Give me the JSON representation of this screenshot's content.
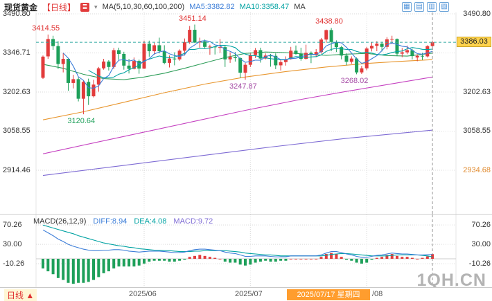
{
  "header": {
    "title": "现货黄金",
    "period": "【日线】",
    "chart_type_glyph": "≣",
    "chevron": "▾",
    "ma_params": "MA(5,10,30,60,100,200)",
    "ma5": "MA5:3382.82",
    "ma10": "MA10:3358.47",
    "ma_more": "MA",
    "toolbar_icons": [
      {
        "name": "grid-layout-icon",
        "glyph": "▦"
      },
      {
        "name": "rows-layout-icon",
        "glyph": "▤"
      },
      {
        "name": "columns-layout-icon",
        "glyph": "▥"
      },
      {
        "name": "fullscreen-icon",
        "glyph": "▧"
      }
    ]
  },
  "footer": {
    "period_label": "日线",
    "arrow": "▲",
    "x_labels": [
      "2025/06",
      "2025/07",
      "/08"
    ],
    "crosshair_date": "2025/07/17 星期四",
    "watermark": "1QH.CN"
  },
  "chart_data": {
    "type": "candlestick",
    "symbol": "现货黄金",
    "interval": "日线",
    "y_axis_left": [
      "3490.80",
      "3346.71",
      "3202.63",
      "3058.55",
      "2914.46"
    ],
    "y_axis_right": [
      "3490.80",
      "3202.63",
      "3058.55",
      "2934.68"
    ],
    "current_price": "3386.03",
    "month_ticks": [
      20,
      41,
      64
    ],
    "colors": {
      "up": "#e23b3b",
      "down": "#1ea05a",
      "crosshair": "#2aa7a0",
      "ma5": "#3b7dd8",
      "ma10": "#00a2a2",
      "ma30": "#2f9e5a",
      "ma60": "#e8962e",
      "ma100": "#c542c1",
      "ma200": "#7e6bd4",
      "diff_line": "#3b7dd8",
      "dea_line": "#00a2a2",
      "highlight_bg": "#ffd34d",
      "date_bg": "#ff9d2e"
    },
    "candles": [
      [
        3255,
        3337,
        3251,
        3333
      ],
      [
        3334,
        3414.55,
        3325,
        3398
      ],
      [
        3398,
        3410,
        3358,
        3372
      ],
      [
        3372,
        3390,
        3288,
        3306
      ],
      [
        3306,
        3347,
        3275,
        3325
      ],
      [
        3325,
        3328,
        3207,
        3236
      ],
      [
        3236,
        3266,
        3216,
        3250
      ],
      [
        3250,
        3257,
        3168,
        3178
      ],
      [
        3178,
        3245,
        3120.64,
        3240
      ],
      [
        3240,
        3252,
        3155,
        3187
      ],
      [
        3187,
        3248,
        3183,
        3230
      ],
      [
        3230,
        3295,
        3204,
        3290
      ],
      [
        3290,
        3325,
        3285,
        3315
      ],
      [
        3315,
        3320,
        3282,
        3295
      ],
      [
        3295,
        3365,
        3287,
        3357
      ],
      [
        3357,
        3366,
        3322,
        3343
      ],
      [
        3343,
        3351,
        3285,
        3300
      ],
      [
        3300,
        3325,
        3271,
        3288
      ],
      [
        3288,
        3330,
        3286,
        3317
      ],
      [
        3317,
        3322,
        3270,
        3289
      ],
      [
        3289,
        3392,
        3288,
        3381
      ],
      [
        3381,
        3392,
        3333,
        3353
      ],
      [
        3353,
        3384,
        3340,
        3375
      ],
      [
        3375,
        3403,
        3345,
        3353
      ],
      [
        3353,
        3375,
        3305,
        3310
      ],
      [
        3310,
        3337,
        3293,
        3326
      ],
      [
        3326,
        3349,
        3301,
        3323
      ],
      [
        3323,
        3360,
        3318,
        3355
      ],
      [
        3355,
        3400,
        3337,
        3386
      ],
      [
        3386,
        3446,
        3380,
        3432
      ],
      [
        3432,
        3451.14,
        3383,
        3385
      ],
      [
        3385,
        3403,
        3366,
        3389
      ],
      [
        3389,
        3396,
        3363,
        3369
      ],
      [
        3369,
        3377,
        3340,
        3370
      ],
      [
        3370,
        3372,
        3341,
        3368
      ],
      [
        3368,
        3398,
        3347,
        3368
      ],
      [
        3368,
        3372,
        3295,
        3323
      ],
      [
        3323,
        3349,
        3310,
        3332
      ],
      [
        3332,
        3350,
        3315,
        3328
      ],
      [
        3328,
        3330,
        3255,
        3274
      ],
      [
        3274,
        3310,
        3247.87,
        3303
      ],
      [
        3303,
        3345,
        3295,
        3339
      ],
      [
        3339,
        3365,
        3328,
        3357
      ],
      [
        3357,
        3366,
        3311,
        3326
      ],
      [
        3326,
        3345,
        3323,
        3337
      ],
      [
        3337,
        3343,
        3296,
        3336
      ],
      [
        3336,
        3345,
        3287,
        3301
      ],
      [
        3301,
        3320,
        3282,
        3313
      ],
      [
        3313,
        3334,
        3300,
        3324
      ],
      [
        3324,
        3369,
        3322,
        3355
      ],
      [
        3355,
        3374,
        3340,
        3343
      ],
      [
        3343,
        3366,
        3318,
        3325
      ],
      [
        3325,
        3377,
        3322,
        3347
      ],
      [
        3347,
        3352,
        3309,
        3339
      ],
      [
        3339,
        3361,
        3331,
        3350
      ],
      [
        3350,
        3402,
        3344,
        3396
      ],
      [
        3396,
        3433,
        3384,
        3431
      ],
      [
        3431,
        3438.8,
        3353,
        3387
      ],
      [
        3387,
        3393,
        3350,
        3368
      ],
      [
        3368,
        3373,
        3323,
        3337
      ],
      [
        3337,
        3345,
        3301,
        3314
      ],
      [
        3314,
        3334,
        3307,
        3326
      ],
      [
        3326,
        3330,
        3268.02,
        3275
      ],
      [
        3275,
        3299,
        3269,
        3290
      ],
      [
        3290,
        3369,
        3283,
        3363
      ],
      [
        3363,
        3385,
        3352,
        3373
      ],
      [
        3373,
        3390,
        3353,
        3381
      ],
      [
        3381,
        3388,
        3352,
        3369
      ],
      [
        3369,
        3405,
        3360,
        3397
      ],
      [
        3397,
        3410,
        3380,
        3398
      ],
      [
        3398,
        3400,
        3335,
        3344
      ],
      [
        3344,
        3365,
        3331,
        3349
      ],
      [
        3349,
        3374,
        3342,
        3357
      ],
      [
        3357,
        3362,
        3323,
        3335
      ],
      [
        3330,
        3342,
        3316,
        3336
      ],
      [
        3336,
        3347,
        3321,
        3334
      ],
      [
        3334,
        3375,
        3330,
        3372
      ],
      [
        3372,
        3392,
        3358,
        3386.03
      ]
    ],
    "ma_lines": [
      {
        "name": "MA30",
        "color": "#2f9e5a",
        "points": [
          [
            0,
            3305
          ],
          [
            4,
            3290
          ],
          [
            8,
            3268
          ],
          [
            12,
            3252
          ],
          [
            16,
            3248
          ],
          [
            20,
            3258
          ],
          [
            24,
            3272
          ],
          [
            28,
            3290
          ],
          [
            32,
            3310
          ],
          [
            36,
            3330
          ],
          [
            40,
            3345
          ],
          [
            44,
            3350
          ],
          [
            48,
            3348
          ],
          [
            52,
            3342
          ],
          [
            56,
            3338
          ],
          [
            60,
            3342
          ],
          [
            64,
            3345
          ],
          [
            68,
            3337
          ],
          [
            72,
            3335
          ],
          [
            77,
            3346
          ]
        ]
      },
      {
        "name": "MA60",
        "color": "#e8962e",
        "points": [
          [
            0,
            3100
          ],
          [
            8,
            3130
          ],
          [
            16,
            3165
          ],
          [
            24,
            3200
          ],
          [
            32,
            3232
          ],
          [
            40,
            3258
          ],
          [
            48,
            3278
          ],
          [
            56,
            3295
          ],
          [
            64,
            3308
          ],
          [
            70,
            3315
          ],
          [
            77,
            3322
          ]
        ]
      },
      {
        "name": "MA100",
        "color": "#c542c1",
        "points": [
          [
            0,
            2975
          ],
          [
            10,
            3015
          ],
          [
            20,
            3055
          ],
          [
            30,
            3095
          ],
          [
            40,
            3135
          ],
          [
            50,
            3172
          ],
          [
            60,
            3205
          ],
          [
            68,
            3230
          ],
          [
            77,
            3258
          ]
        ]
      },
      {
        "name": "MA200",
        "color": "#7e6bd4",
        "points": [
          [
            0,
            2895
          ],
          [
            15,
            2930
          ],
          [
            30,
            2965
          ],
          [
            45,
            3000
          ],
          [
            60,
            3032
          ],
          [
            77,
            3062
          ]
        ]
      }
    ],
    "annotations": [
      {
        "text": "3414.55",
        "price": 3414.55,
        "index": 1,
        "side": "above",
        "color": "#e03131"
      },
      {
        "text": "3451.14",
        "price": 3451.14,
        "index": 30,
        "side": "above",
        "color": "#e03131"
      },
      {
        "text": "3438.80",
        "price": 3438.8,
        "index": 57,
        "side": "above",
        "color": "#e03131"
      },
      {
        "text": "3120.64",
        "price": 3120.64,
        "index": 8,
        "side": "below",
        "color": "#1ea05a"
      },
      {
        "text": "3247.87",
        "price": 3247.87,
        "index": 40,
        "side": "below",
        "color": "#a64ca6"
      },
      {
        "text": "3268.02",
        "price": 3268.02,
        "index": 62,
        "side": "below",
        "color": "#a64ca6"
      }
    ],
    "macd": {
      "label": "MACD(26,12,9)",
      "diff_label": "DIFF:8.94",
      "dea_label": "DEA:4.08",
      "macd_label": "MACD:9.72",
      "y_axis": [
        "70.26",
        "30.00",
        "-10.26"
      ],
      "diff": [
        60,
        54,
        48,
        41,
        36,
        30,
        26,
        23,
        20,
        18,
        17,
        17,
        18,
        18,
        19,
        19,
        18,
        16,
        15,
        14,
        15,
        16,
        16,
        16,
        15,
        14,
        13,
        13,
        14,
        17,
        19,
        20,
        20,
        19,
        18,
        17,
        14,
        12,
        11,
        8,
        5,
        5,
        6,
        6,
        6,
        5,
        4,
        4,
        4,
        6,
        6,
        6,
        6,
        6,
        6,
        8,
        12,
        15,
        15,
        13,
        10,
        8,
        5,
        3,
        3,
        5,
        7,
        8,
        10,
        12,
        11,
        10,
        10,
        9,
        8,
        8,
        8.5,
        8.94
      ],
      "dea": [
        70,
        67,
        64,
        61,
        58,
        55,
        52,
        48,
        45,
        42,
        39,
        36,
        33,
        31,
        29,
        27,
        26,
        24,
        23,
        21,
        20,
        19,
        18,
        18,
        17,
        17,
        16,
        15,
        15,
        15,
        16,
        16,
        17,
        17,
        17,
        17,
        17,
        16,
        15,
        14,
        12,
        11,
        10,
        9,
        8,
        8,
        7,
        6,
        6,
        6,
        6,
        6,
        6,
        6,
        6,
        6,
        7,
        9,
        10,
        11,
        11,
        10,
        9,
        8,
        7,
        6,
        6,
        6,
        6,
        7,
        8,
        8,
        8,
        8,
        8,
        7,
        6,
        4.08
      ]
    }
  }
}
